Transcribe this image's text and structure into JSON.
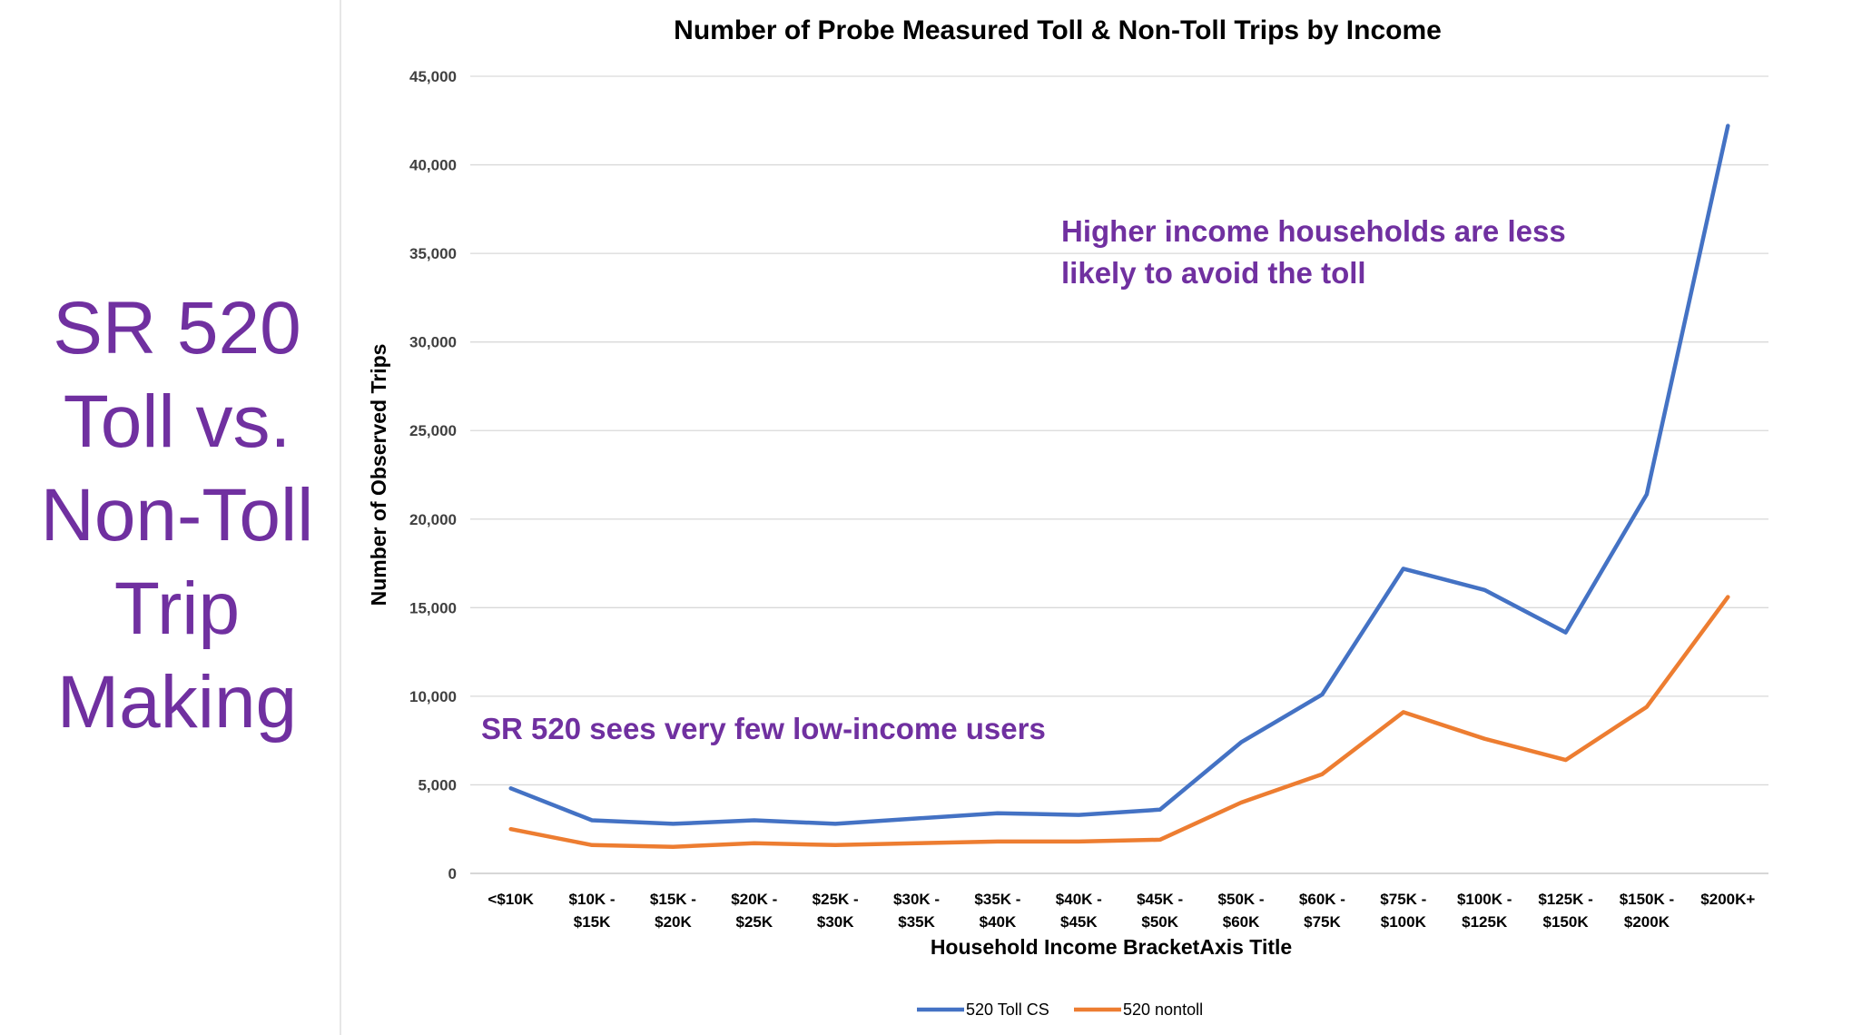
{
  "side_title": [
    "SR 520",
    "Toll vs.",
    "Non-Toll",
    "Trip",
    "Making"
  ],
  "chart_data": {
    "type": "line",
    "title": "Number of Probe Measured Toll & Non-Toll Trips by Income",
    "xlabel": "Household Income BracketAxis Title",
    "ylabel": "Number of Observed Trips",
    "ylim": [
      0,
      45000
    ],
    "yticks": [
      "0",
      "5,000",
      "10,000",
      "15,000",
      "20,000",
      "25,000",
      "30,000",
      "35,000",
      "40,000",
      "45,000"
    ],
    "categories": [
      [
        "<$10K"
      ],
      [
        "$10K -",
        "$15K"
      ],
      [
        "$15K -",
        "$20K"
      ],
      [
        "$20K -",
        "$25K"
      ],
      [
        "$25K -",
        "$30K"
      ],
      [
        "$30K -",
        "$35K"
      ],
      [
        "$35K -",
        "$40K"
      ],
      [
        "$40K -",
        "$45K"
      ],
      [
        "$45K -",
        "$50K"
      ],
      [
        "$50K -",
        "$60K"
      ],
      [
        "$60K -",
        "$75K"
      ],
      [
        "$75K -",
        "$100K"
      ],
      [
        "$100K -",
        "$125K"
      ],
      [
        "$125K -",
        "$150K"
      ],
      [
        "$150K -",
        "$200K"
      ],
      [
        "$200K+"
      ]
    ],
    "series": [
      {
        "name": "520 Toll CS",
        "color": "#4472c4",
        "values": [
          4800,
          3000,
          2800,
          3000,
          2800,
          3100,
          3400,
          3300,
          3600,
          7400,
          10100,
          17200,
          16000,
          13600,
          21400,
          42200
        ]
      },
      {
        "name": "520 nontoll",
        "color": "#ed7d31",
        "values": [
          2500,
          1600,
          1500,
          1700,
          1600,
          1700,
          1800,
          1800,
          1900,
          4000,
          5600,
          9100,
          7600,
          6400,
          9400,
          15600
        ]
      }
    ],
    "annotations": [
      {
        "lines": [
          "Higher income households are less",
          "likely to avoid the toll"
        ]
      },
      {
        "lines": [
          "SR 520 sees very few low-income users"
        ]
      }
    ],
    "grid": true,
    "legend": "bottom-center"
  }
}
